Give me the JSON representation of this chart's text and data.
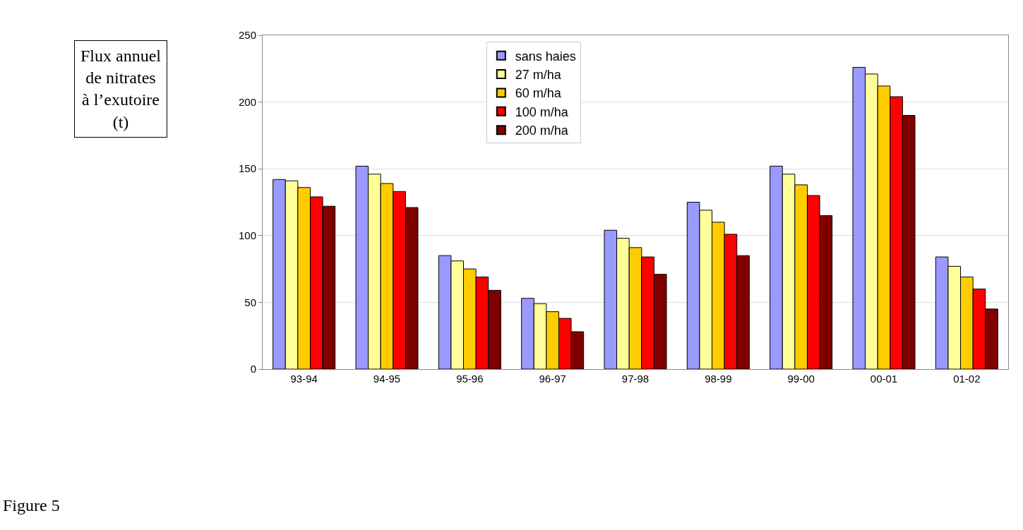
{
  "chart_data": {
    "type": "bar",
    "ylabel": "Flux annuel\nde nitrates\nà l’exutoire\n(t)",
    "categories": [
      "93-94",
      "94-95",
      "95-96",
      "96-97",
      "97-98",
      "98-99",
      "99-00",
      "00-01",
      "01-02"
    ],
    "series": [
      {
        "name": "sans haies",
        "color": "#9999ff",
        "values": [
          142,
          152,
          85,
          53,
          104,
          125,
          152,
          226,
          84
        ]
      },
      {
        "name": "27 m/ha",
        "color": "#ffff99",
        "values": [
          141,
          146,
          81,
          49,
          98,
          119,
          146,
          221,
          77
        ]
      },
      {
        "name": "60 m/ha",
        "color": "#ffcc00",
        "values": [
          136,
          139,
          75,
          43,
          91,
          110,
          138,
          212,
          69
        ]
      },
      {
        "name": "100 m/ha",
        "color": "#ff0000",
        "values": [
          129,
          133,
          69,
          38,
          84,
          101,
          130,
          204,
          60
        ]
      },
      {
        "name": "200 m/ha",
        "color": "#800000",
        "values": [
          122,
          121,
          59,
          28,
          71,
          85,
          115,
          190,
          45
        ]
      }
    ],
    "ylim": [
      0,
      250
    ],
    "yticks": [
      0,
      50,
      100,
      150,
      200,
      250
    ],
    "grid": "y",
    "legend": "top",
    "annotations": [
      "Figure 5"
    ]
  }
}
